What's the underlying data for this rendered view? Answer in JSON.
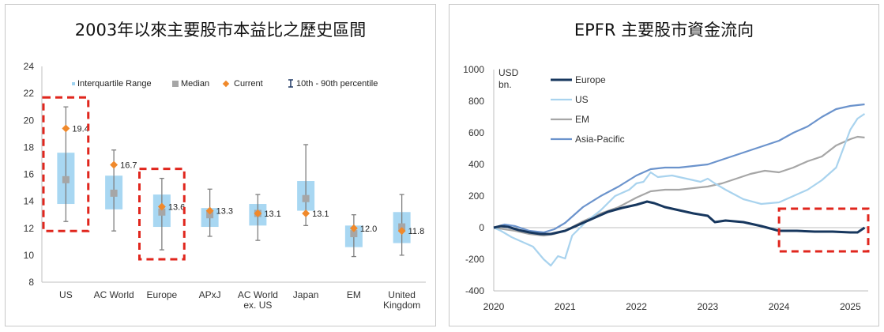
{
  "chart_data": [
    {
      "type": "box",
      "title": "2003年以來主要股市本益比之歷史區間",
      "ylim": [
        8,
        24
      ],
      "yticks": [
        8,
        10,
        12,
        14,
        16,
        18,
        20,
        22,
        24
      ],
      "legend": [
        "Interquartile Range",
        "Median",
        "Current",
        "10th - 90th percentile"
      ],
      "legend_placement": "top",
      "categories": [
        "US",
        "AC World",
        "Europe",
        "APxJ",
        "AC World ex. US",
        "Japan",
        "EM",
        "United Kingdom"
      ],
      "category_lines": [
        [
          "US"
        ],
        [
          "AC World"
        ],
        [
          "Europe"
        ],
        [
          "APxJ"
        ],
        [
          "AC World",
          "ex. US"
        ],
        [
          "Japan"
        ],
        [
          "EM"
        ],
        [
          "United",
          "Kingdom"
        ]
      ],
      "p10": [
        12.5,
        11.8,
        10.4,
        11.4,
        11.1,
        12.2,
        9.9,
        10.0
      ],
      "q1": [
        13.8,
        13.4,
        12.1,
        12.1,
        12.2,
        13.3,
        10.6,
        10.9
      ],
      "median": [
        15.6,
        14.6,
        13.2,
        13.0,
        13.1,
        14.2,
        11.6,
        12.1
      ],
      "q3": [
        17.6,
        15.9,
        14.5,
        13.5,
        13.8,
        15.5,
        12.2,
        13.2
      ],
      "p90": [
        21.0,
        17.8,
        15.7,
        14.9,
        14.5,
        18.2,
        13.0,
        14.5
      ],
      "current": [
        19.4,
        16.7,
        13.6,
        13.3,
        13.1,
        13.1,
        12.0,
        11.8
      ],
      "current_labels": [
        "19.4",
        "16.7",
        "13.6",
        "13.3",
        "13.1",
        "13.1",
        "12.0",
        "11.8"
      ],
      "highlighted_categories": [
        "US",
        "Europe"
      ],
      "colors": {
        "iqr": "#9fd3f1",
        "median": "#a6a6a6",
        "current": "#f0892b",
        "whisker": "#7f7f7f",
        "highlight": "#e0261d"
      }
    },
    {
      "type": "line",
      "title": "EPFR 主要股市資金流向",
      "ylabel": "USD bn.",
      "ylabel_lines": [
        "USD",
        "bn."
      ],
      "xlim": [
        2020,
        2025.25
      ],
      "ylim": [
        -400,
        1000
      ],
      "xticks": [
        2020,
        2021,
        2022,
        2023,
        2024,
        2025
      ],
      "yticks": [
        -400,
        -200,
        0,
        200,
        400,
        600,
        800,
        1000
      ],
      "legend_placement": "top-left",
      "highlight_region": {
        "x": [
          2024,
          2025.25
        ],
        "y": [
          -150,
          120
        ],
        "color": "#e0261d"
      },
      "series": [
        {
          "name": "Europe",
          "color": "#17375e",
          "x": [
            2020,
            2020.1,
            2020.2,
            2020.35,
            2020.5,
            2020.65,
            2020.8,
            2021,
            2021.2,
            2021.4,
            2021.6,
            2021.8,
            2022,
            2022.15,
            2022.25,
            2022.4,
            2022.6,
            2022.8,
            2023,
            2023.1,
            2023.25,
            2023.5,
            2023.75,
            2024,
            2024.25,
            2024.5,
            2024.75,
            2025,
            2025.1,
            2025.2
          ],
          "y": [
            0,
            10,
            5,
            -15,
            -30,
            -40,
            -40,
            -20,
            20,
            60,
            100,
            125,
            145,
            165,
            155,
            130,
            110,
            90,
            75,
            35,
            45,
            35,
            10,
            -20,
            -20,
            -25,
            -25,
            -30,
            -30,
            0
          ]
        },
        {
          "name": "US",
          "color": "#a9d3ee",
          "x": [
            2020,
            2020.1,
            2020.25,
            2020.4,
            2020.55,
            2020.7,
            2020.8,
            2020.9,
            2021,
            2021.1,
            2021.3,
            2021.5,
            2021.7,
            2021.9,
            2022,
            2022.1,
            2022.2,
            2022.3,
            2022.5,
            2022.7,
            2022.9,
            2023,
            2023.1,
            2023.25,
            2023.5,
            2023.75,
            2024,
            2024.2,
            2024.4,
            2024.6,
            2024.8,
            2025,
            2025.1,
            2025.2
          ],
          "y": [
            0,
            -20,
            -60,
            -90,
            -120,
            -200,
            -240,
            -180,
            -195,
            -50,
            40,
            110,
            200,
            240,
            280,
            290,
            350,
            320,
            330,
            310,
            290,
            310,
            280,
            240,
            180,
            150,
            160,
            200,
            240,
            300,
            380,
            620,
            690,
            720
          ]
        },
        {
          "name": "EM",
          "color": "#a6a6a6",
          "x": [
            2020,
            2020.15,
            2020.3,
            2020.5,
            2020.7,
            2020.85,
            2021,
            2021.25,
            2021.5,
            2021.75,
            2022,
            2022.2,
            2022.4,
            2022.6,
            2022.8,
            2023,
            2023.2,
            2023.4,
            2023.6,
            2023.8,
            2024,
            2024.2,
            2024.4,
            2024.6,
            2024.8,
            2025,
            2025.1,
            2025.2
          ],
          "y": [
            0,
            -10,
            -20,
            -40,
            -50,
            -40,
            -20,
            40,
            90,
            130,
            190,
            230,
            240,
            240,
            250,
            260,
            280,
            310,
            340,
            360,
            350,
            380,
            420,
            450,
            520,
            560,
            575,
            570
          ]
        },
        {
          "name": "Asia-Pacific",
          "color": "#6b93cc",
          "x": [
            2020,
            2020.15,
            2020.3,
            2020.5,
            2020.7,
            2020.85,
            2021,
            2021.25,
            2021.5,
            2021.75,
            2022,
            2022.2,
            2022.4,
            2022.6,
            2022.8,
            2023,
            2023.2,
            2023.4,
            2023.6,
            2023.8,
            2024,
            2024.2,
            2024.4,
            2024.6,
            2024.8,
            2025,
            2025.1,
            2025.2
          ],
          "y": [
            0,
            20,
            10,
            -20,
            -30,
            -10,
            30,
            130,
            200,
            260,
            330,
            370,
            380,
            380,
            390,
            400,
            430,
            460,
            490,
            520,
            550,
            600,
            640,
            700,
            750,
            770,
            775,
            780
          ]
        }
      ]
    }
  ]
}
